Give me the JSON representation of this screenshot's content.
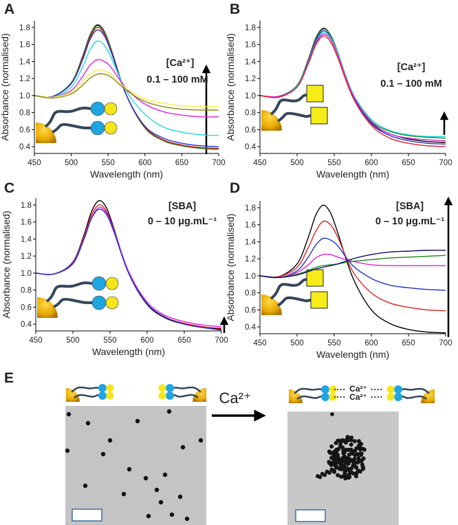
{
  "chart_data": [
    {
      "type": "line",
      "label": "A",
      "x_label": "Wavelength (nm)",
      "y_label": "Absorbance (normalised)",
      "annotations": [
        "[Ca²⁺]",
        "0.1 – 100 mM"
      ],
      "x": [
        450,
        475,
        500,
        515,
        525,
        535,
        545,
        555,
        575,
        600,
        625,
        650,
        675,
        700
      ],
      "xlim": [
        450,
        700
      ],
      "xticks": [
        450,
        500,
        550,
        600,
        650,
        700
      ],
      "ylim": [
        0.32,
        1.88
      ],
      "yticks": [
        0.4,
        0.6,
        0.8,
        {
          "value": 1,
          "label": "1.0"
        },
        1.2,
        1.4,
        1.6,
        1.8
      ],
      "series": [
        {
          "color": "#000000",
          "values": [
            1.0,
            0.99,
            1.15,
            1.45,
            1.7,
            1.83,
            1.75,
            1.52,
            1.0,
            0.62,
            0.47,
            0.41,
            0.38,
            0.37
          ]
        },
        {
          "color": "#1a8a1a",
          "values": [
            1.0,
            0.99,
            1.15,
            1.44,
            1.69,
            1.82,
            1.74,
            1.51,
            1.0,
            0.62,
            0.47,
            0.41,
            0.38,
            0.37
          ]
        },
        {
          "color": "#e02020",
          "values": [
            1.0,
            0.99,
            1.14,
            1.43,
            1.67,
            1.8,
            1.72,
            1.5,
            1.0,
            0.63,
            0.48,
            0.42,
            0.39,
            0.38
          ]
        },
        {
          "color": "#2030d0",
          "values": [
            1.0,
            0.99,
            1.14,
            1.41,
            1.65,
            1.77,
            1.7,
            1.49,
            1.0,
            0.64,
            0.5,
            0.44,
            0.41,
            0.4
          ]
        },
        {
          "color": "#20d8e0",
          "values": [
            1.0,
            0.98,
            1.1,
            1.33,
            1.53,
            1.64,
            1.59,
            1.43,
            1.05,
            0.78,
            0.63,
            0.57,
            0.54,
            0.53
          ]
        },
        {
          "color": "#e020d8",
          "values": [
            1.0,
            0.98,
            1.06,
            1.22,
            1.35,
            1.42,
            1.4,
            1.32,
            1.08,
            0.9,
            0.81,
            0.77,
            0.75,
            0.75
          ]
        },
        {
          "color": "#f0f040",
          "values": [
            1.0,
            0.98,
            1.04,
            1.16,
            1.25,
            1.3,
            1.29,
            1.24,
            1.08,
            0.96,
            0.91,
            0.88,
            0.87,
            0.87
          ]
        },
        {
          "color": "#8a8a10",
          "values": [
            1.0,
            0.97,
            1.02,
            1.12,
            1.2,
            1.25,
            1.25,
            1.21,
            1.06,
            0.93,
            0.87,
            0.84,
            0.83,
            0.83
          ]
        }
      ]
    },
    {
      "type": "line",
      "label": "B",
      "x_label": "Wavelength (nm)",
      "y_label": "Absorbance (normalised)",
      "annotations": [
        "[Ca²⁺]",
        "0.1 – 100 mM"
      ],
      "x": [
        450,
        475,
        500,
        515,
        525,
        535,
        545,
        555,
        575,
        600,
        625,
        650,
        675,
        700
      ],
      "xlim": [
        450,
        700
      ],
      "xticks": [
        450,
        500,
        550,
        600,
        650,
        700
      ],
      "ylim": [
        0.32,
        1.88
      ],
      "yticks": [
        0.4,
        0.6,
        0.8,
        {
          "value": 1,
          "label": "1.0"
        },
        1.2,
        1.4,
        1.6,
        1.8
      ],
      "series": [
        {
          "color": "#000000",
          "values": [
            1.0,
            0.99,
            1.12,
            1.42,
            1.67,
            1.79,
            1.71,
            1.5,
            1.0,
            0.68,
            0.55,
            0.49,
            0.46,
            0.45
          ]
        },
        {
          "color": "#1a8a1a",
          "values": [
            1.0,
            0.99,
            1.12,
            1.41,
            1.66,
            1.78,
            1.71,
            1.5,
            1.02,
            0.7,
            0.58,
            0.53,
            0.51,
            0.5
          ]
        },
        {
          "color": "#2030d0",
          "values": [
            1.0,
            0.99,
            1.11,
            1.4,
            1.64,
            1.76,
            1.69,
            1.48,
            1.0,
            0.67,
            0.53,
            0.47,
            0.44,
            0.43
          ]
        },
        {
          "color": "#20d8e0",
          "values": [
            1.0,
            0.99,
            1.11,
            1.39,
            1.62,
            1.74,
            1.68,
            1.49,
            1.03,
            0.72,
            0.59,
            0.54,
            0.52,
            0.52
          ]
        },
        {
          "color": "#e020d8",
          "values": [
            1.0,
            0.99,
            1.1,
            1.38,
            1.61,
            1.72,
            1.66,
            1.47,
            1.01,
            0.69,
            0.55,
            0.5,
            0.48,
            0.47
          ]
        },
        {
          "color": "#e02020",
          "values": [
            1.0,
            0.98,
            1.1,
            1.37,
            1.59,
            1.7,
            1.63,
            1.44,
            0.98,
            0.65,
            0.5,
            0.44,
            0.41,
            0.4
          ]
        }
      ]
    },
    {
      "type": "line",
      "label": "C",
      "x_label": "Wavelength (nm)",
      "y_label": "Absorbance (normalised)",
      "annotations": [
        "[SBA]",
        "0 – 10 μg.mL⁻¹"
      ],
      "x": [
        450,
        475,
        500,
        515,
        525,
        535,
        545,
        555,
        575,
        600,
        625,
        650,
        675,
        700
      ],
      "xlim": [
        450,
        700
      ],
      "xticks": [
        450,
        500,
        550,
        600,
        650,
        700
      ],
      "ylim": [
        0.32,
        1.88
      ],
      "yticks": [
        0.4,
        0.6,
        0.8,
        {
          "value": 1,
          "label": "1.0"
        },
        1.2,
        1.4,
        1.6,
        1.8
      ],
      "series": [
        {
          "color": "#000000",
          "values": [
            1.0,
            0.99,
            1.13,
            1.45,
            1.72,
            1.85,
            1.77,
            1.53,
            1.0,
            0.63,
            0.47,
            0.4,
            0.36,
            0.34
          ]
        },
        {
          "color": "#e02020",
          "values": [
            1.0,
            0.99,
            1.12,
            1.43,
            1.68,
            1.8,
            1.73,
            1.51,
            1.0,
            0.64,
            0.48,
            0.41,
            0.37,
            0.35
          ]
        },
        {
          "color": "#e020d8",
          "values": [
            1.0,
            0.99,
            1.12,
            1.41,
            1.65,
            1.77,
            1.71,
            1.51,
            1.02,
            0.66,
            0.5,
            0.43,
            0.39,
            0.37
          ]
        },
        {
          "color": "#2030d0",
          "values": [
            1.0,
            0.99,
            1.11,
            1.4,
            1.64,
            1.75,
            1.69,
            1.49,
            1.0,
            0.64,
            0.48,
            0.4,
            0.36,
            0.33
          ]
        }
      ]
    },
    {
      "type": "line",
      "label": "D",
      "x_label": "Wavelength (nm)",
      "y_label": "Absorbance (normalised)",
      "annotations": [
        "[SBA]",
        "0 – 10 μg.mL⁻¹"
      ],
      "x": [
        450,
        475,
        500,
        515,
        525,
        535,
        545,
        555,
        575,
        600,
        625,
        650,
        675,
        700
      ],
      "xlim": [
        450,
        700
      ],
      "xticks": [
        450,
        500,
        550,
        600,
        650,
        700
      ],
      "ylim": [
        0.32,
        1.88
      ],
      "yticks": [
        0.4,
        0.6,
        0.8,
        {
          "value": 1,
          "label": "1.0"
        },
        1.2,
        1.4,
        1.6,
        1.8
      ],
      "series": [
        {
          "color": "#000000",
          "values": [
            1.0,
            0.99,
            1.14,
            1.45,
            1.71,
            1.83,
            1.74,
            1.5,
            0.98,
            0.6,
            0.44,
            0.37,
            0.34,
            0.33
          ]
        },
        {
          "color": "#e02020",
          "values": [
            1.0,
            0.99,
            1.1,
            1.33,
            1.52,
            1.64,
            1.6,
            1.45,
            1.05,
            0.8,
            0.68,
            0.63,
            0.6,
            0.59
          ]
        },
        {
          "color": "#2030d0",
          "values": [
            1.0,
            0.98,
            1.06,
            1.22,
            1.36,
            1.44,
            1.42,
            1.35,
            1.12,
            0.97,
            0.89,
            0.86,
            0.84,
            0.83
          ]
        },
        {
          "color": "#e020d8",
          "values": [
            1.0,
            0.98,
            1.04,
            1.13,
            1.21,
            1.25,
            1.25,
            1.22,
            1.17,
            1.13,
            1.12,
            1.12,
            1.12,
            1.12
          ]
        },
        {
          "color": "#1a8a1a",
          "values": [
            1.0,
            0.98,
            1.02,
            1.06,
            1.1,
            1.12,
            1.13,
            1.14,
            1.17,
            1.19,
            1.21,
            1.22,
            1.23,
            1.24
          ]
        },
        {
          "color": "#101060",
          "values": [
            1.0,
            0.98,
            1.01,
            1.05,
            1.08,
            1.1,
            1.12,
            1.14,
            1.2,
            1.25,
            1.28,
            1.29,
            1.3,
            1.3
          ]
        }
      ]
    }
  ],
  "panel_e": {
    "label": "E",
    "arrow_label": "Ca²⁺",
    "bond_labels": [
      "Ca²⁺",
      "Ca²⁺"
    ]
  }
}
